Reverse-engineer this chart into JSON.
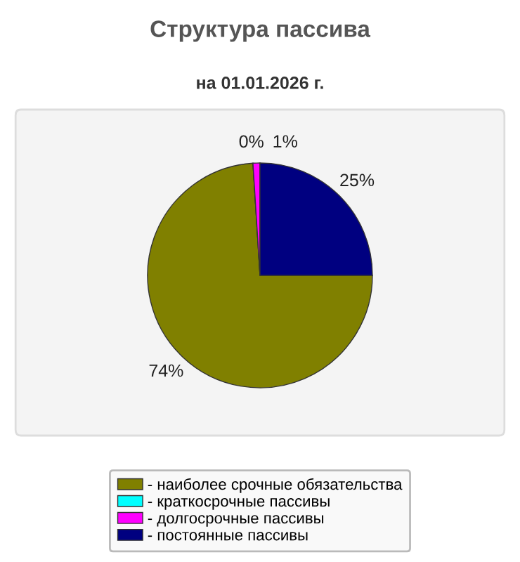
{
  "chart_data": {
    "type": "pie",
    "title": "Структура пассива",
    "subtitle": "на 01.01.2026 г.",
    "categories": [
      "- наиболее срочные обязательства",
      "- краткосрочные пассивы",
      "- долгосрочные пассивы",
      "- постоянные пассивы"
    ],
    "values": [
      74,
      0,
      1,
      25
    ],
    "colors": [
      "#808000",
      "#00ffff",
      "#ff00ff",
      "#000080"
    ],
    "value_labels": [
      "74%",
      "0%",
      "1%",
      "25%"
    ],
    "legend": "bottom"
  }
}
